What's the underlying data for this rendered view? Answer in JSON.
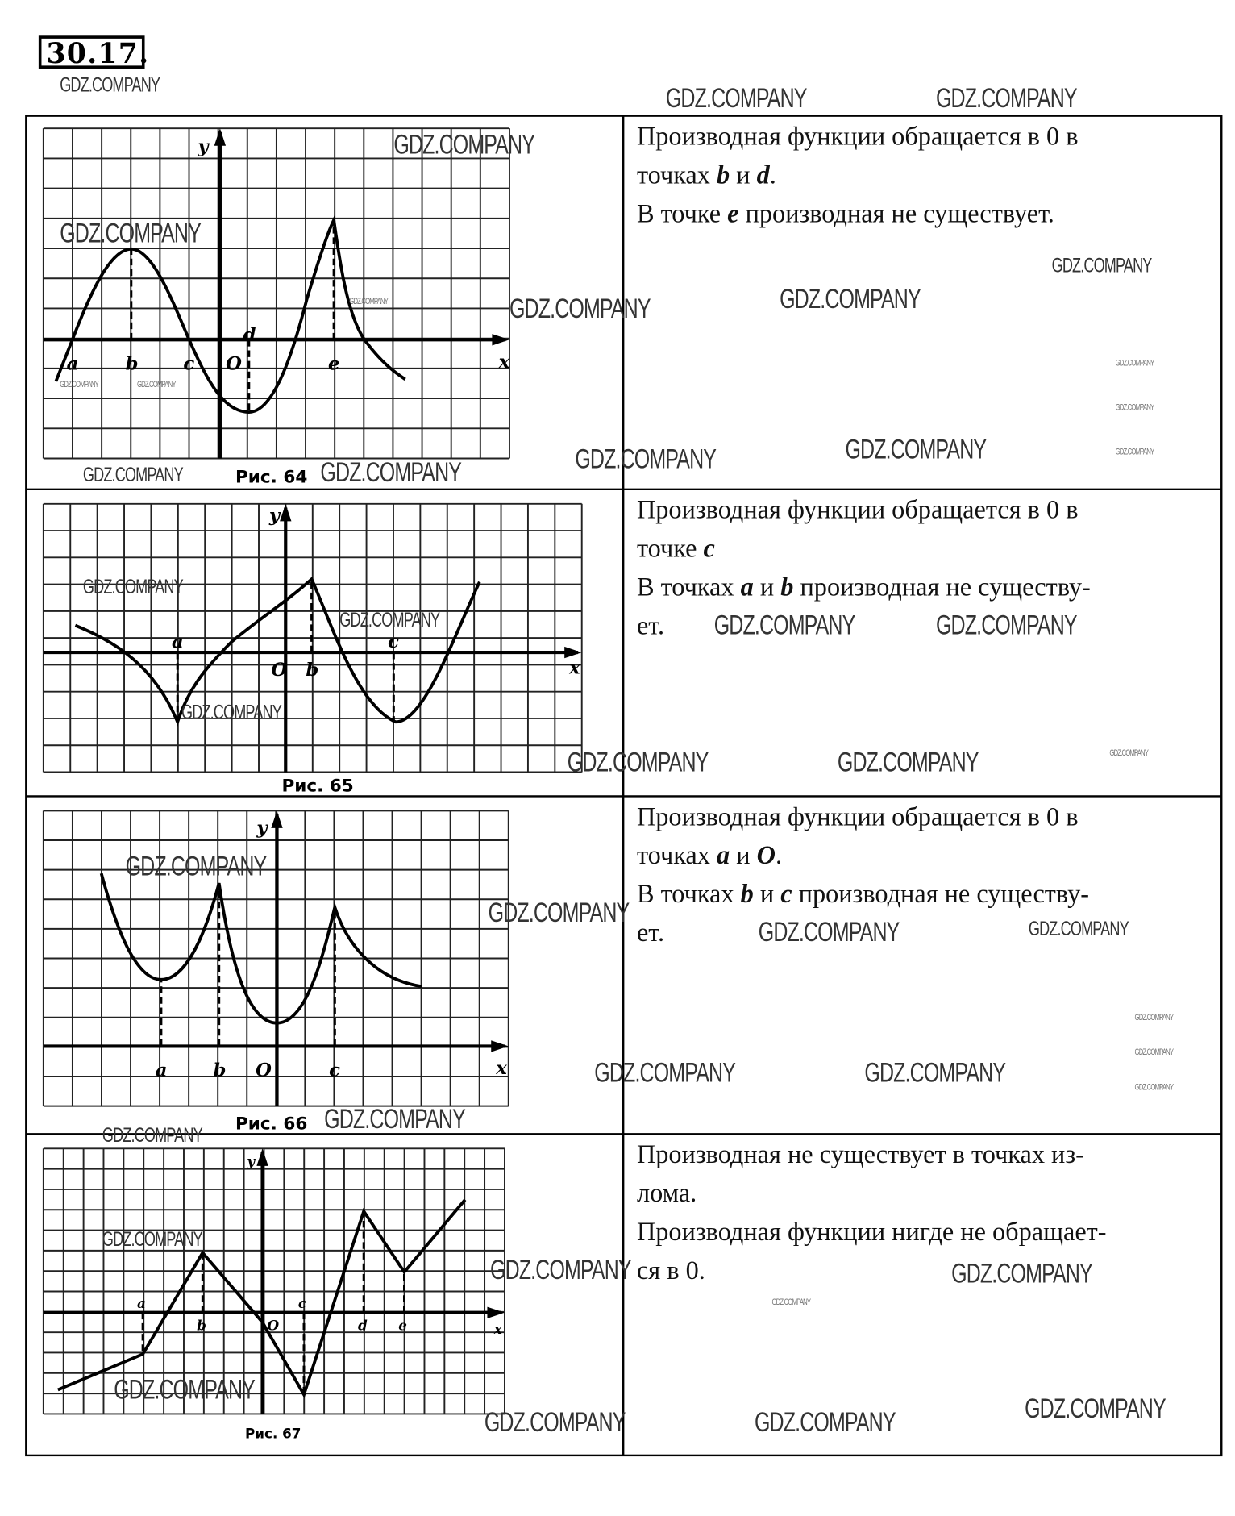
{
  "problem_number": "30.17.",
  "watermark": "GDZ.COMPANY",
  "figures": [
    {
      "caption": "Рис. 64",
      "x_label": "x",
      "y_label": "y",
      "points": [
        "a",
        "b",
        "c",
        "O",
        "d",
        "e"
      ]
    },
    {
      "caption": "Рис. 65",
      "x_label": "x",
      "y_label": "y",
      "points": [
        "a",
        "O",
        "b",
        "c"
      ]
    },
    {
      "caption": "Рис. 66",
      "x_label": "x",
      "y_label": "y",
      "points": [
        "a",
        "b",
        "O",
        "c"
      ]
    },
    {
      "caption": "Рис. 67",
      "x_label": "x",
      "y_label": "y",
      "points": [
        "a",
        "b",
        "O",
        "c",
        "d",
        "e"
      ]
    }
  ],
  "rows": [
    {
      "lines": [
        [
          {
            "t": "Производная функции обращается в 0 в"
          }
        ],
        [
          {
            "t": "точках "
          },
          {
            "t": "b",
            "i": true
          },
          {
            "t": " и "
          },
          {
            "t": "d",
            "i": true
          },
          {
            "t": "."
          }
        ],
        [
          {
            "t": "В точке "
          },
          {
            "t": "e",
            "i": true
          },
          {
            "t": " производная не существует."
          }
        ]
      ]
    },
    {
      "lines": [
        [
          {
            "t": "Производная функции обращается в 0 в"
          }
        ],
        [
          {
            "t": "точке "
          },
          {
            "t": "c",
            "i": true
          }
        ],
        [
          {
            "t": "В точках "
          },
          {
            "t": "a",
            "i": true
          },
          {
            "t": " и "
          },
          {
            "t": "b",
            "i": true
          },
          {
            "t": " производная не существу-"
          }
        ],
        [
          {
            "t": "ет."
          }
        ]
      ]
    },
    {
      "lines": [
        [
          {
            "t": "Производная функции обращается в 0 в"
          }
        ],
        [
          {
            "t": "точках "
          },
          {
            "t": "a",
            "i": true
          },
          {
            "t": " и "
          },
          {
            "t": "O",
            "i": true
          },
          {
            "t": "."
          }
        ],
        [
          {
            "t": "В точках "
          },
          {
            "t": "b",
            "i": true
          },
          {
            "t": " и "
          },
          {
            "t": "c",
            "i": true
          },
          {
            "t": " производная не существу-"
          }
        ],
        [
          {
            "t": "ет."
          }
        ]
      ]
    },
    {
      "lines": [
        [
          {
            "t": "Производная не существует в точках из-"
          }
        ],
        [
          {
            "t": "лома."
          }
        ],
        [
          {
            "t": "Производная функции нигде не обращает-"
          }
        ],
        [
          {
            "t": "ся в 0."
          }
        ]
      ]
    }
  ]
}
